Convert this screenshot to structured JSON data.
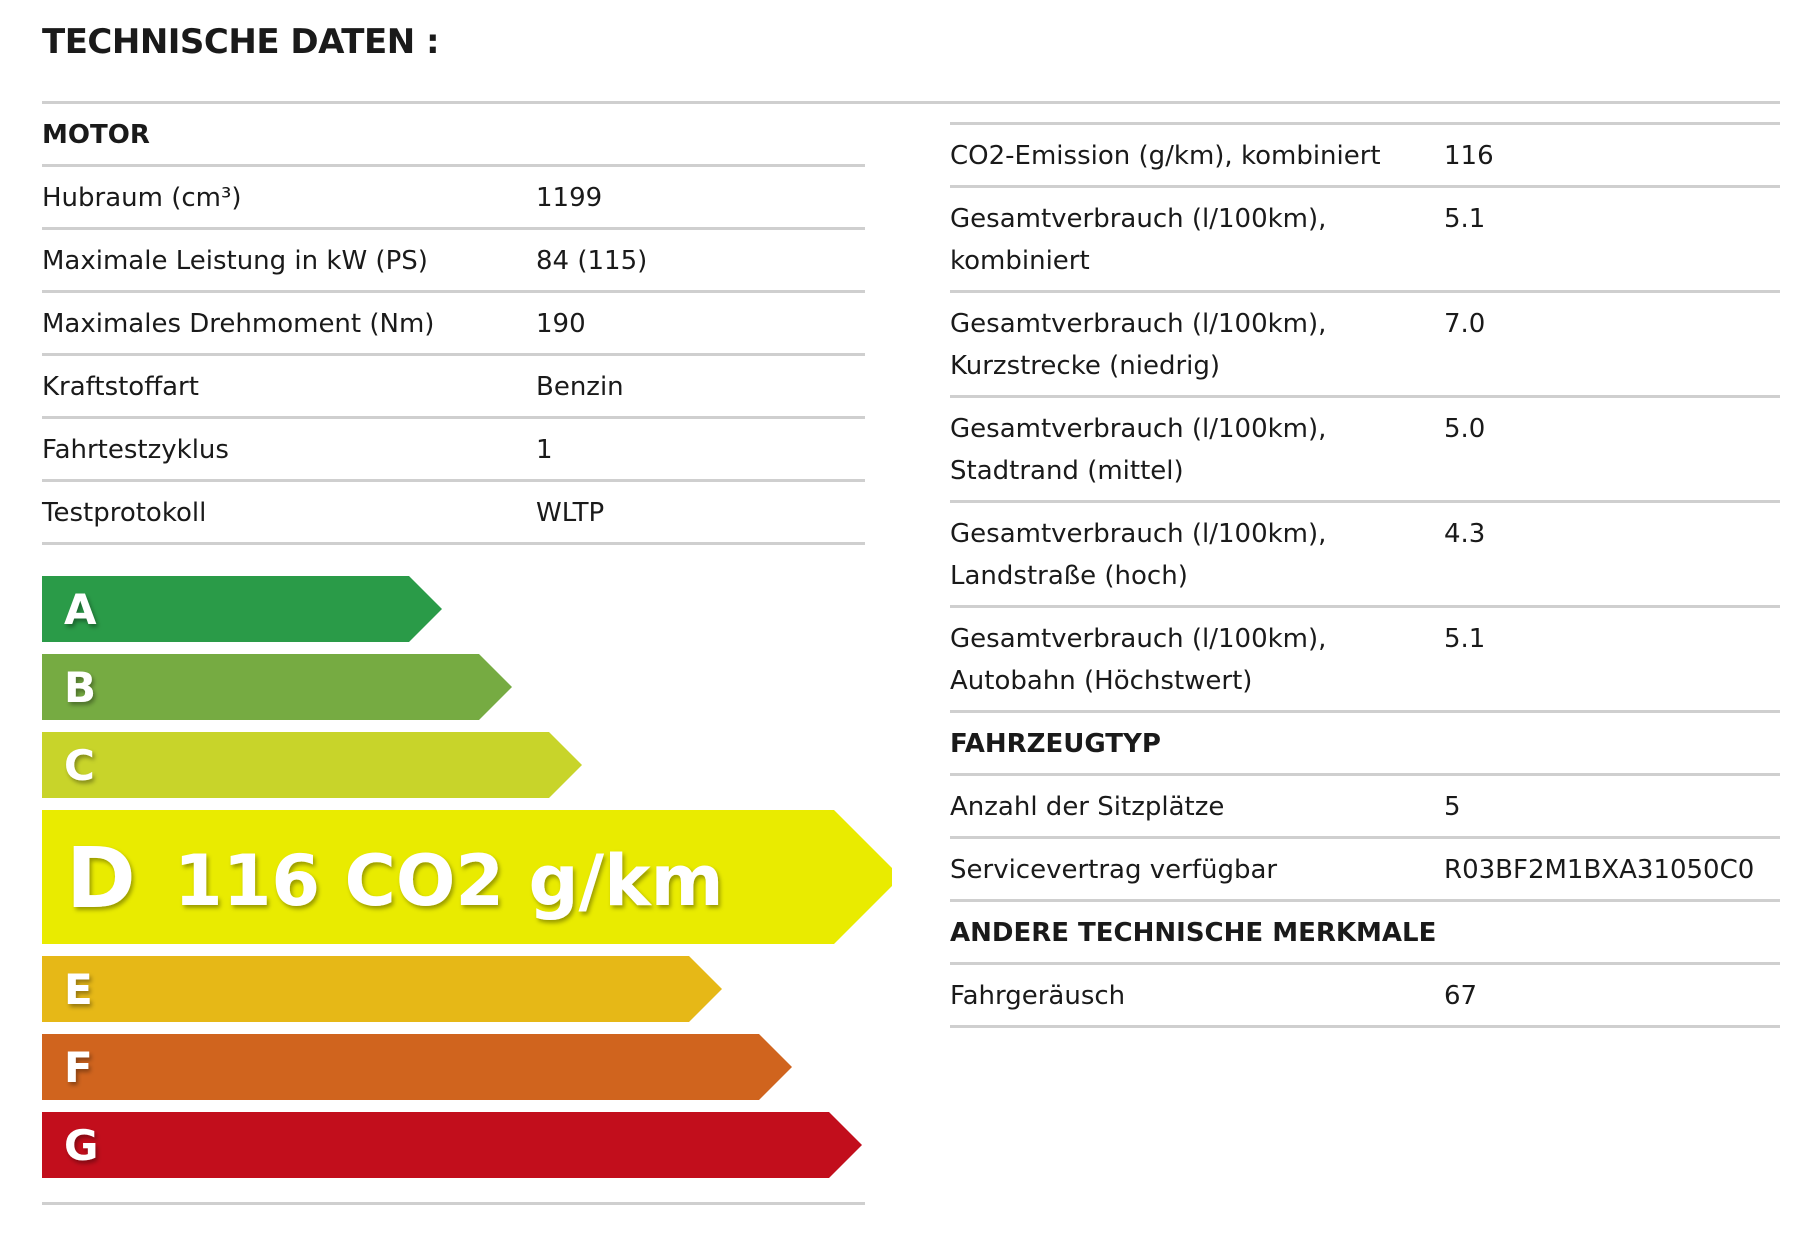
{
  "title": "TECHNISCHE DATEN :",
  "motor": {
    "header": "MOTOR",
    "rows": [
      {
        "label": "Hubraum (cm³)",
        "value": "1199"
      },
      {
        "label": "Maximale Leistung in kW (PS)",
        "value": "84 (115)"
      },
      {
        "label": "Maximales Drehmoment (Nm)",
        "value": "190"
      },
      {
        "label": "Kraftstoffart",
        "value": "Benzin"
      },
      {
        "label": "Fahrtestzyklus",
        "value": "1"
      },
      {
        "label": "Testprotokoll",
        "value": "WLTP"
      }
    ]
  },
  "consumption": {
    "rows": [
      {
        "label": "CO2-Emission (g/km), kombiniert",
        "value": "116"
      },
      {
        "label": "Gesamtverbrauch (l/100km), kombiniert",
        "value": "5.1"
      },
      {
        "label": "Gesamtverbrauch (l/100km), Kurzstrecke (niedrig)",
        "value": "7.0"
      },
      {
        "label": "Gesamtverbrauch (l/100km), Stadtrand (mittel)",
        "value": "5.0"
      },
      {
        "label": "Gesamtverbrauch (l/100km), Landstraße (hoch)",
        "value": "4.3"
      },
      {
        "label": "Gesamtverbrauch (l/100km), Autobahn (Höchstwert)",
        "value": "5.1"
      }
    ]
  },
  "fahrzeugtyp": {
    "header": "FAHRZEUGTYP",
    "rows": [
      {
        "label": "Anzahl der Sitzplätze",
        "value": "5"
      },
      {
        "label": "Servicevertrag verfügbar",
        "value": "R03BF2M1BXA31050C0"
      }
    ]
  },
  "andere": {
    "header": "ANDERE TECHNISCHE MERKMALE",
    "rows": [
      {
        "label": "Fahrgeräusch",
        "value": "67"
      }
    ]
  },
  "energy_label": {
    "classes": [
      {
        "letter": "A",
        "color": "#2a9b48"
      },
      {
        "letter": "B",
        "color": "#76ab42"
      },
      {
        "letter": "C",
        "color": "#c8d42a"
      },
      {
        "letter": "D",
        "color": "#e9eb00"
      },
      {
        "letter": "E",
        "color": "#e6b817"
      },
      {
        "letter": "F",
        "color": "#d0641e"
      },
      {
        "letter": "G",
        "color": "#c20e1c"
      }
    ],
    "active_class": "D",
    "active_text": "116 CO2 g/km"
  }
}
